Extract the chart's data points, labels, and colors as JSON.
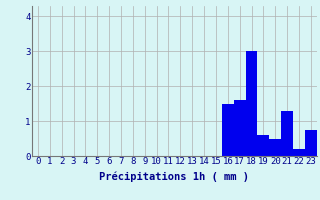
{
  "hours": [
    0,
    1,
    2,
    3,
    4,
    5,
    6,
    7,
    8,
    9,
    10,
    11,
    12,
    13,
    14,
    15,
    16,
    17,
    18,
    19,
    20,
    21,
    22,
    23
  ],
  "values": [
    0,
    0,
    0,
    0,
    0,
    0,
    0,
    0,
    0,
    0,
    0,
    0,
    0,
    0,
    0,
    0,
    1.5,
    1.6,
    3.0,
    0.6,
    0.5,
    1.3,
    0.2,
    0.75
  ],
  "bar_color": "#0000ee",
  "background_color": "#d8f5f5",
  "grid_color": "#b0b0b0",
  "xlabel": "Précipitations 1h ( mm )",
  "xlabel_color": "#00008B",
  "tick_color": "#00008B",
  "ylim": [
    0,
    4.3
  ],
  "yticks": [
    0,
    1,
    2,
    3,
    4
  ],
  "bar_width": 1.0,
  "xlabel_fontsize": 7.5,
  "tick_fontsize": 6.5
}
